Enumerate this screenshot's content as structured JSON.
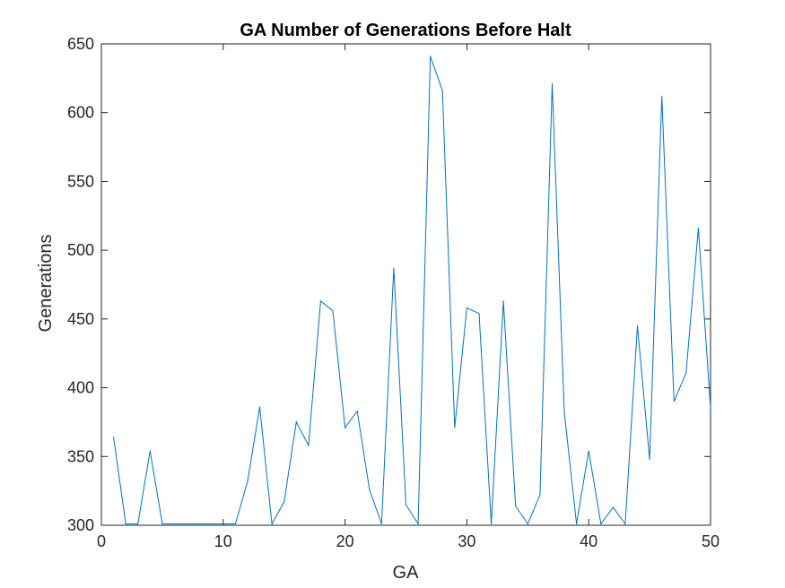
{
  "chart_data": {
    "type": "line",
    "title": "GA Number of Generations Before Halt",
    "xlabel": "GA",
    "ylabel": "Generations",
    "xlim": [
      0,
      50
    ],
    "ylim": [
      300,
      650
    ],
    "xticks": [
      0,
      10,
      20,
      30,
      40,
      50
    ],
    "yticks": [
      300,
      350,
      400,
      450,
      500,
      550,
      600,
      650
    ],
    "xtick_labels": [
      "0",
      "10",
      "20",
      "30",
      "40",
      "50"
    ],
    "ytick_labels": [
      "300",
      "350",
      "400",
      "450",
      "500",
      "550",
      "600",
      "650"
    ],
    "grid": false,
    "line_color": "#0072BD",
    "series": [
      {
        "x": [
          1,
          2,
          3,
          4,
          5,
          6,
          7,
          8,
          9,
          10,
          11,
          12,
          13,
          14,
          15,
          16,
          17,
          18,
          19,
          20,
          21,
          22,
          23,
          24,
          25,
          26,
          27,
          28,
          29,
          30,
          31,
          32,
          33,
          34,
          35,
          36,
          37,
          38,
          39,
          40,
          41,
          42,
          43,
          44,
          45,
          46,
          47,
          48,
          49,
          50
        ],
        "values": [
          364,
          301,
          301,
          354,
          301,
          301,
          301,
          301,
          301,
          301,
          301,
          332,
          386,
          301,
          317,
          375,
          358,
          463,
          456,
          371,
          383,
          326,
          301,
          487,
          315,
          301,
          641,
          616,
          371,
          458,
          454,
          301,
          463,
          314,
          301,
          322,
          621,
          382,
          301,
          354,
          301,
          313,
          301,
          445,
          348,
          612,
          390,
          411,
          516,
          385
        ]
      }
    ]
  }
}
